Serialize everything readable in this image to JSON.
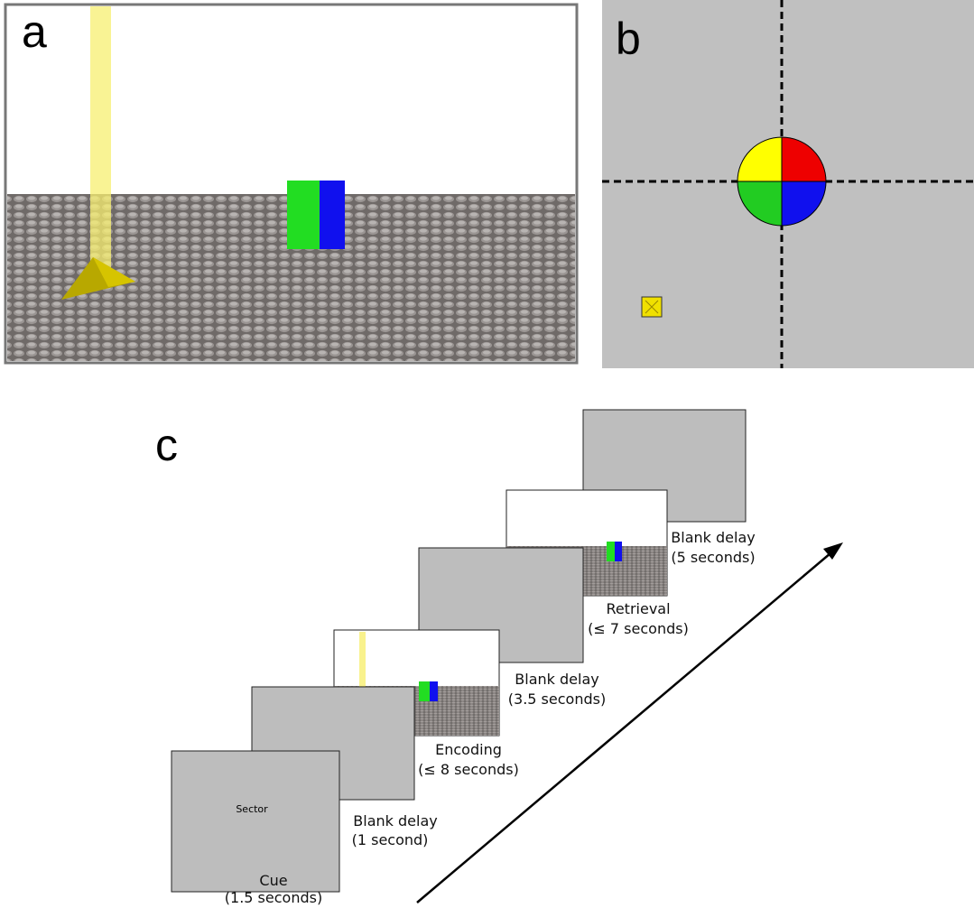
{
  "panels": {
    "a": {
      "label": "a"
    },
    "b": {
      "label": "b"
    },
    "c": {
      "label": "c",
      "cue_text": "Sector",
      "steps": [
        {
          "name": "Cue",
          "duration": "(1.5 seconds)"
        },
        {
          "name": "Blank delay",
          "duration": "(1 second)"
        },
        {
          "name": "Encoding",
          "duration": "(≤ 8 seconds)"
        },
        {
          "name": "Blank delay",
          "duration": "(3.5 seconds)"
        },
        {
          "name": "Retrieval",
          "duration": "(≤ 7 seconds)"
        },
        {
          "name": "Blank delay",
          "duration": "(5 seconds)"
        }
      ]
    }
  }
}
